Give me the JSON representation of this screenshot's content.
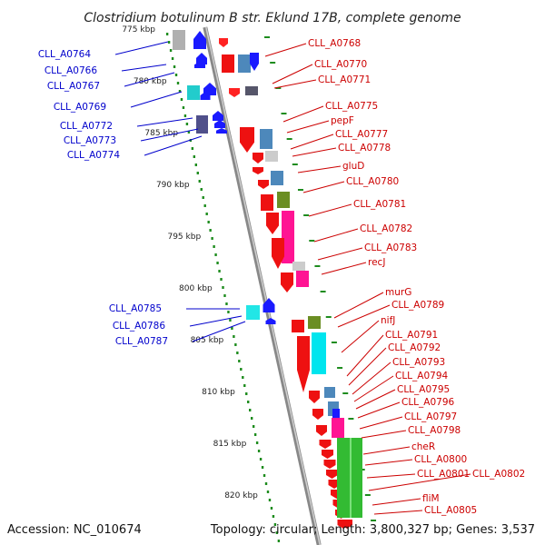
{
  "title": "Clostridium botulinum B str. Eklund 17B, complete genome",
  "footer": {
    "accession": "Accession: NC_010674",
    "topology": "Topology: circular; Length: 3,800,327 bp; Genes: 3,537"
  },
  "colors": {
    "backbone": "#888888",
    "scale_dots": "#1e8c1e",
    "left_label": "#0000cc",
    "right_label": "#cc0000"
  },
  "scale_ticks": [
    "775 kbp",
    "780 kbp",
    "785 kbp",
    "790 kbp",
    "795 kbp",
    "800 kbp",
    "805 kbp",
    "810 kbp",
    "815 kbp",
    "820 kbp"
  ],
  "left_labels": [
    "CLL_A0764",
    "CLL_A0766",
    "CLL_A0767",
    "CLL_A0769",
    "CLL_A0772",
    "CLL_A0773",
    "CLL_A0774",
    "CLL_A0785",
    "CLL_A0786",
    "CLL_A0787"
  ],
  "right_labels": [
    "CLL_A0768",
    "CLL_A0770",
    "CLL_A0771",
    "CLL_A0775",
    "pepF",
    "CLL_A0777",
    "CLL_A0778",
    "gluD",
    "CLL_A0780",
    "CLL_A0781",
    "CLL_A0782",
    "CLL_A0783",
    "recJ",
    "murG",
    "CLL_A0789",
    "nifJ",
    "CLL_A0791",
    "CLL_A0792",
    "CLL_A0793",
    "CLL_A0794",
    "CLL_A0795",
    "CLL_A0796",
    "CLL_A0797",
    "CLL_A0798",
    "cheR",
    "CLL_A0800",
    "CLL_A0801",
    "CLL_A0802",
    "fliM",
    "CLL_A0805"
  ]
}
